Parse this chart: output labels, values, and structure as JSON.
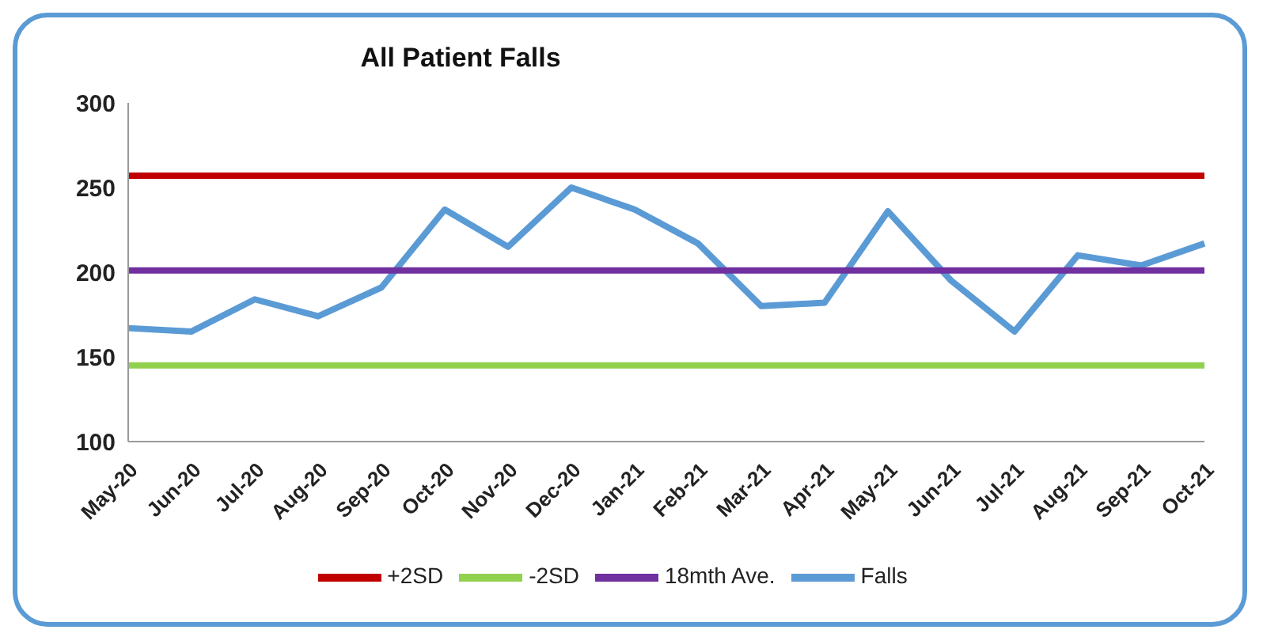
{
  "chart_data": {
    "type": "line",
    "title": "All Patient Falls",
    "categories": [
      "May-20",
      "Jun-20",
      "Jul-20",
      "Aug-20",
      "Sep-20",
      "Oct-20",
      "Nov-20",
      "Dec-20",
      "Jan-21",
      "Feb-21",
      "Mar-21",
      "Apr-21",
      "May-21",
      "Jun-21",
      "Jul-21",
      "Aug-21",
      "Sep-21",
      "Oct-21"
    ],
    "series": [
      {
        "name": "Falls",
        "color": "#5b9bd5",
        "values": [
          167,
          165,
          184,
          174,
          191,
          237,
          215,
          250,
          237,
          217,
          180,
          182,
          236,
          195,
          165,
          210,
          204,
          217
        ]
      },
      {
        "name": "18mth Ave.",
        "color": "#7030a0",
        "values": [
          201,
          201,
          201,
          201,
          201,
          201,
          201,
          201,
          201,
          201,
          201,
          201,
          201,
          201,
          201,
          201,
          201,
          201
        ]
      },
      {
        "name": "-2SD",
        "color": "#92d050",
        "values": [
          145,
          145,
          145,
          145,
          145,
          145,
          145,
          145,
          145,
          145,
          145,
          145,
          145,
          145,
          145,
          145,
          145,
          145
        ]
      },
      {
        "name": "+2SD",
        "color": "#c00000",
        "values": [
          257,
          257,
          257,
          257,
          257,
          257,
          257,
          257,
          257,
          257,
          257,
          257,
          257,
          257,
          257,
          257,
          257,
          257
        ]
      }
    ],
    "ylim": [
      100,
      300
    ],
    "yticks": [
      100,
      150,
      200,
      250,
      300
    ],
    "grid": false,
    "legend": "bottom",
    "marker": "none",
    "line_style": "solid"
  }
}
